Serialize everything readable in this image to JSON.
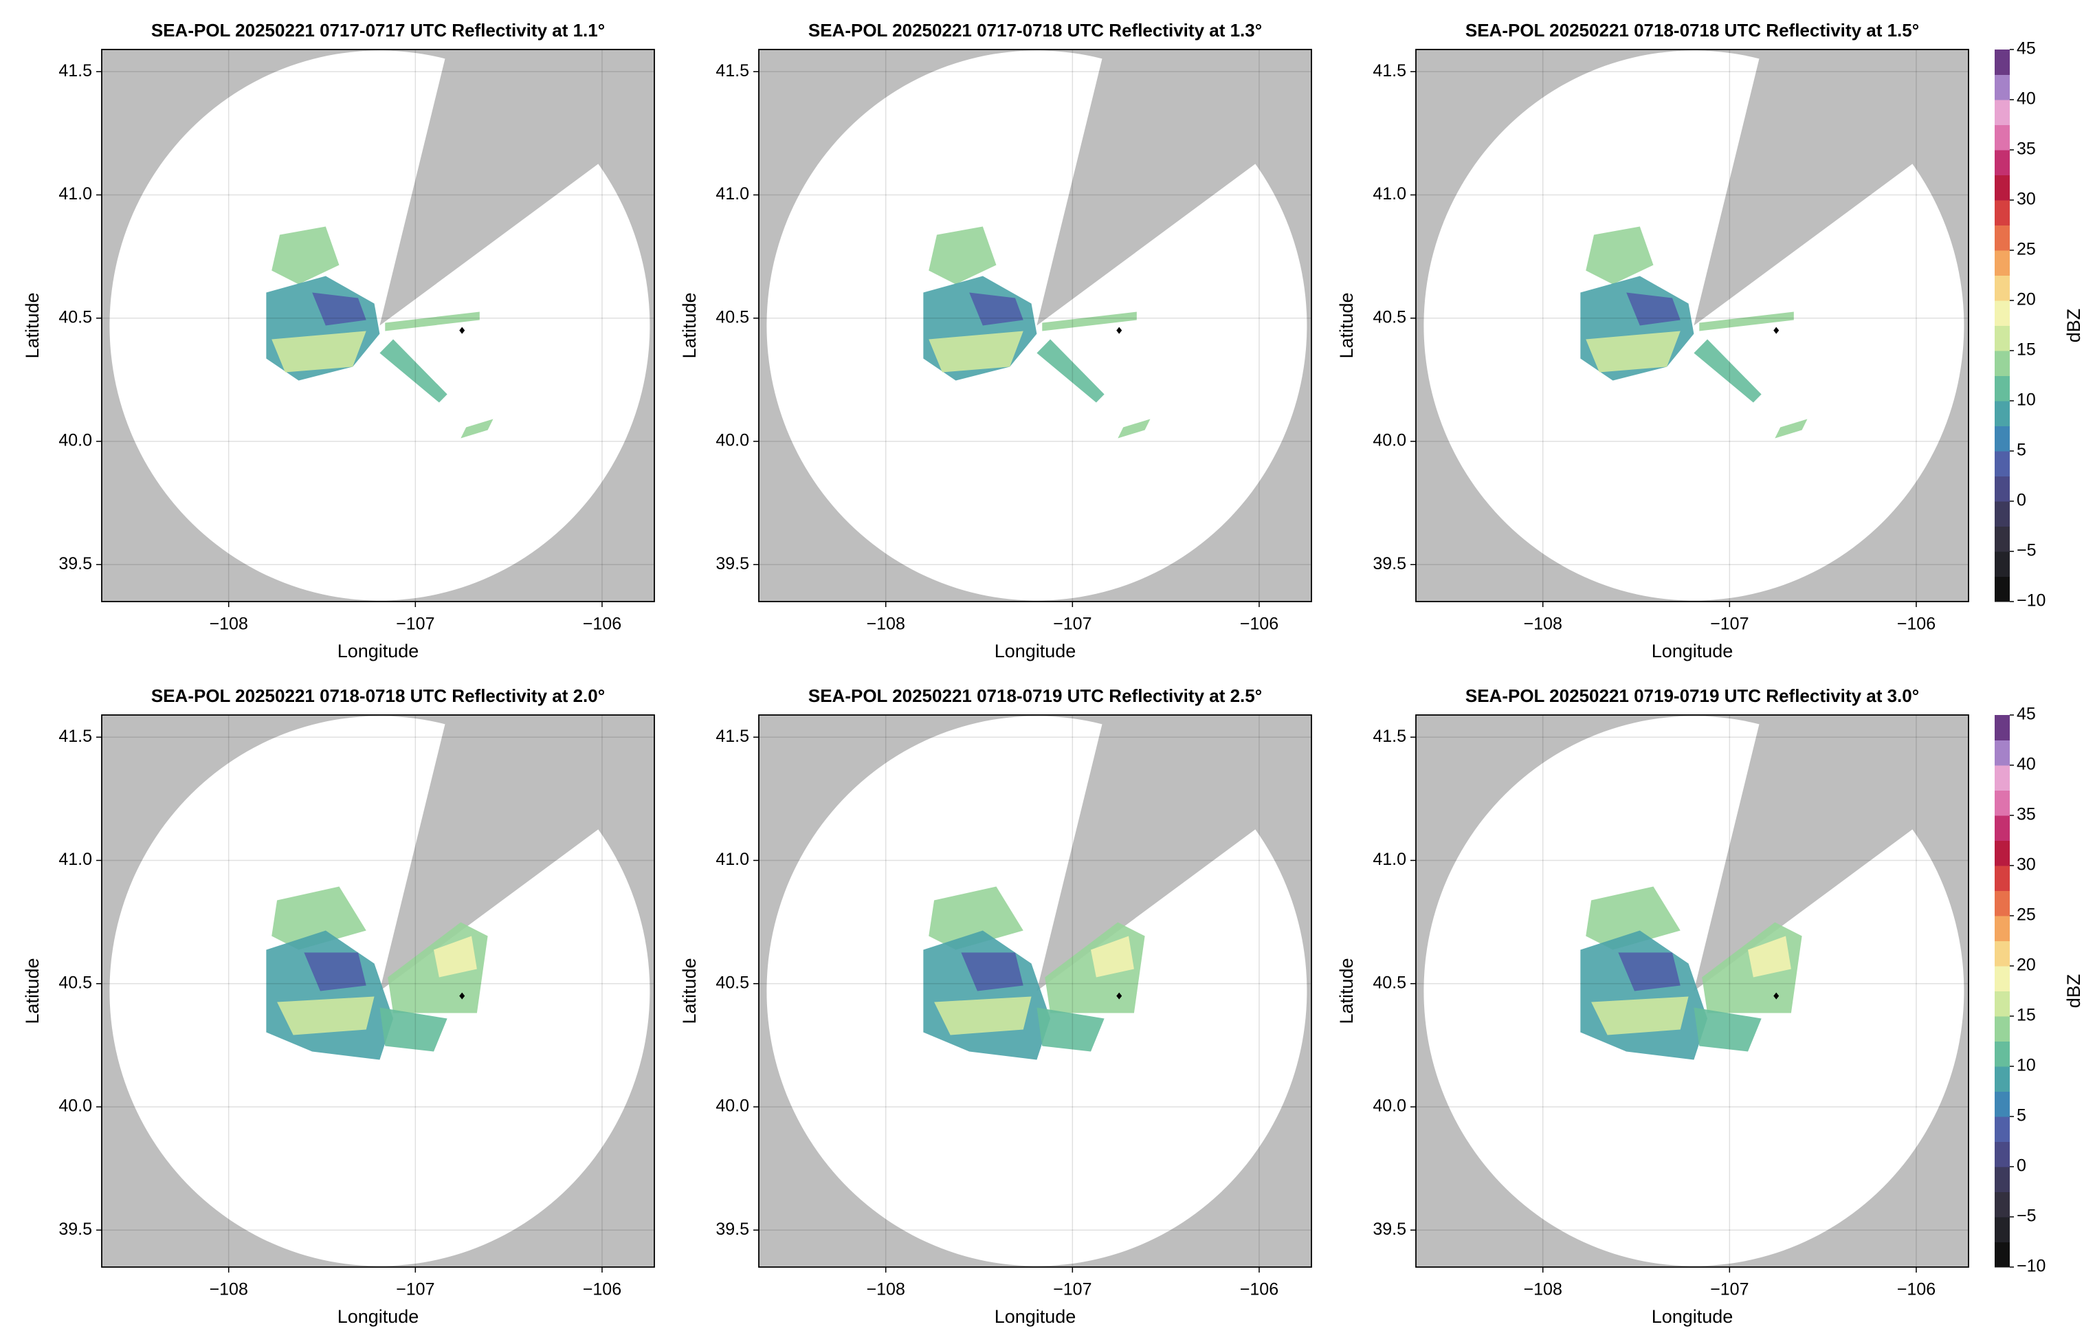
{
  "chart_data": [
    {
      "type": "map",
      "title": "SEA-POL 20250221 0717-0717 UTC Reflectivity at 1.1°",
      "xlabel": "Longitude",
      "ylabel": "Latitude",
      "xlim": [
        -108.68,
        -105.72
      ],
      "ylim": [
        39.35,
        41.59
      ],
      "xticks": [
        {
          "value": -108,
          "label": "−108"
        },
        {
          "value": -107,
          "label": "−107"
        },
        {
          "value": -106,
          "label": "−106"
        }
      ],
      "yticks": [
        39.5,
        {
          "value": 40,
          "label": "40.0"
        },
        40.5,
        {
          "value": 41,
          "label": "41.0"
        },
        41.5
      ],
      "grid": true,
      "site": {
        "x": -106.75,
        "y": 40.45
      }
    },
    {
      "type": "map",
      "title": "SEA-POL 20250221 0717-0718 UTC Reflectivity at 1.3°",
      "xlabel": "Longitude",
      "ylabel": "Latitude",
      "xlim": [
        -108.68,
        -105.72
      ],
      "ylim": [
        39.35,
        41.59
      ],
      "xticks": [
        {
          "value": -108,
          "label": "−108"
        },
        {
          "value": -107,
          "label": "−107"
        },
        {
          "value": -106,
          "label": "−106"
        }
      ],
      "yticks": [
        39.5,
        {
          "value": 40,
          "label": "40.0"
        },
        40.5,
        {
          "value": 41,
          "label": "41.0"
        },
        41.5
      ],
      "grid": true,
      "site": {
        "x": -106.75,
        "y": 40.45
      }
    },
    {
      "type": "map",
      "title": "SEA-POL 20250221 0718-0718 UTC Reflectivity at 1.5°",
      "xlabel": "Longitude",
      "ylabel": "Latitude",
      "xlim": [
        -108.68,
        -105.72
      ],
      "ylim": [
        39.35,
        41.59
      ],
      "xticks": [
        {
          "value": -108,
          "label": "−108"
        },
        {
          "value": -107,
          "label": "−107"
        },
        {
          "value": -106,
          "label": "−106"
        }
      ],
      "yticks": [
        39.5,
        {
          "value": 40,
          "label": "40.0"
        },
        40.5,
        {
          "value": 41,
          "label": "41.0"
        },
        41.5
      ],
      "grid": true,
      "site": {
        "x": -106.75,
        "y": 40.45
      },
      "colorbar": {
        "label": "dBZ",
        "lim": [
          -10,
          45
        ],
        "ticks": [
          {
            "value": -10,
            "label": "−10"
          },
          {
            "value": -5,
            "label": "−5"
          },
          0,
          5,
          10,
          15,
          20,
          25,
          30,
          35,
          40,
          45
        ],
        "colors": [
          "#111111",
          "#222228",
          "#33303f",
          "#3d3a5c",
          "#4a4a86",
          "#5060a8",
          "#3f86b5",
          "#4ba3a8",
          "#66bd9c",
          "#98d49a",
          "#cfe89f",
          "#f3f3b0",
          "#f7d587",
          "#f4a65f",
          "#e8714a",
          "#d6403f",
          "#b81b3f",
          "#c3306f",
          "#de73ad",
          "#e8a4d1",
          "#a582c8",
          "#6a3a85"
        ]
      }
    },
    {
      "type": "map",
      "title": "SEA-POL 20250221 0718-0718 UTC Reflectivity at 2.0°",
      "xlabel": "Longitude",
      "ylabel": "Latitude",
      "xlim": [
        -108.68,
        -105.72
      ],
      "ylim": [
        39.35,
        41.59
      ],
      "xticks": [
        {
          "value": -108,
          "label": "−108"
        },
        {
          "value": -107,
          "label": "−107"
        },
        {
          "value": -106,
          "label": "−106"
        }
      ],
      "yticks": [
        39.5,
        {
          "value": 40,
          "label": "40.0"
        },
        40.5,
        {
          "value": 41,
          "label": "41.0"
        },
        41.5
      ],
      "grid": true,
      "site": {
        "x": -106.75,
        "y": 40.45
      }
    },
    {
      "type": "map",
      "title": "SEA-POL 20250221 0718-0719 UTC Reflectivity at 2.5°",
      "xlabel": "Longitude",
      "ylabel": "Latitude",
      "xlim": [
        -108.68,
        -105.72
      ],
      "ylim": [
        39.35,
        41.59
      ],
      "xticks": [
        {
          "value": -108,
          "label": "−108"
        },
        {
          "value": -107,
          "label": "−107"
        },
        {
          "value": -106,
          "label": "−106"
        }
      ],
      "yticks": [
        39.5,
        {
          "value": 40,
          "label": "40.0"
        },
        40.5,
        {
          "value": 41,
          "label": "41.0"
        },
        41.5
      ],
      "grid": true,
      "site": {
        "x": -106.75,
        "y": 40.45
      }
    },
    {
      "type": "map",
      "title": "SEA-POL 20250221 0719-0719 UTC Reflectivity at 3.0°",
      "xlabel": "Longitude",
      "ylabel": "Latitude",
      "xlim": [
        -108.68,
        -105.72
      ],
      "ylim": [
        39.35,
        41.59
      ],
      "xticks": [
        {
          "value": -108,
          "label": "−108"
        },
        {
          "value": -107,
          "label": "−107"
        },
        {
          "value": -106,
          "label": "−106"
        }
      ],
      "yticks": [
        39.5,
        {
          "value": 40,
          "label": "40.0"
        },
        40.5,
        {
          "value": 41,
          "label": "41.0"
        },
        41.5
      ],
      "grid": true,
      "site": {
        "x": -106.75,
        "y": 40.45
      },
      "colorbar": {
        "label": "dBZ",
        "lim": [
          -10,
          45
        ],
        "ticks": [
          {
            "value": -10,
            "label": "−10"
          },
          {
            "value": -5,
            "label": "−5"
          },
          0,
          5,
          10,
          15,
          20,
          25,
          30,
          35,
          40,
          45
        ],
        "colors": [
          "#111111",
          "#222228",
          "#33303f",
          "#3d3a5c",
          "#4a4a86",
          "#5060a8",
          "#3f86b5",
          "#4ba3a8",
          "#66bd9c",
          "#98d49a",
          "#cfe89f",
          "#f3f3b0",
          "#f7d587",
          "#f4a65f",
          "#e8714a",
          "#d6403f",
          "#b81b3f",
          "#c3306f",
          "#de73ad",
          "#e8a4d1",
          "#a582c8",
          "#6a3a85"
        ]
      }
    }
  ]
}
